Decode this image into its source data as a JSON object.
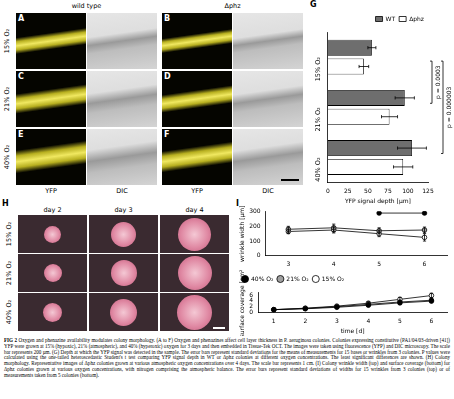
{
  "micrographs": {
    "columns": [
      "wild type",
      "Δphz"
    ],
    "channels": [
      "YFP",
      "DIC"
    ],
    "rows": [
      "15% O₂",
      "21% O₂",
      "40% O₂"
    ],
    "panels": [
      [
        "A",
        "B"
      ],
      [
        "C",
        "D"
      ],
      [
        "E",
        "F"
      ]
    ]
  },
  "colony_photos": {
    "panel": "H",
    "rows": [
      "15% O₂",
      "21% O₂",
      "40% O₂"
    ],
    "columns": [
      "day 2",
      "day 3",
      "day 4"
    ]
  },
  "caption": {
    "title": "FIG 2",
    "text": "Oxygen and phenazine availability modulates colony morphology. (A to F) Oxygen and phenazines affect cell layer thickness in P. aeruginosa colonies. Colonies expressing constitutive (PA1/04/03-driven [41]) YFP were grown at 15% (hypoxic), 21% (atmospheric), and 40% (hyperoxic) oxygen for 3 days and then embedded in Tissue-Tek OCT. The images were taken using fluorescence (YFP) and DIC microscopy. The scale bar represents 200 µm. (G) Depth at which the YFP signal was detected in the sample. The error bars represent standard deviations for the means of measurements for 15 bases or wrinkles from 3 colonies. P values were calculated using the one-tailed heteroscedastic Student's t test comparing YFP signal depth in WT or Δphz colonies at different oxygen concentrations. The least significant differences are shown. (H) Colony morphology. Representative images of Δphz colonies grown at various atmospheric oxygen concentrations over 4 days. The scale bar represents 1 cm. (I) Colony wrinkle width (top) and surface coverage (bottom) for Δphz colonies grown at various oxygen concentrations, with nitrogen comprising the atmospheric balance. The error bars represent standard deviations of widths for 15 wrinkles from 3 colonies (top) or of measurements taken from 5 colonies (bottom)."
  },
  "chart_data": [
    {
      "panel": "G",
      "type": "bar",
      "orientation": "horizontal",
      "categories": [
        "15% O₂",
        "21% O₂",
        "40% O₂"
      ],
      "series": [
        {
          "name": "WT",
          "color": "#6e6e6e",
          "values": [
            55,
            96,
            105
          ],
          "errors": [
            5,
            12,
            18
          ]
        },
        {
          "name": "Δphz",
          "color": "#ffffff",
          "values": [
            45,
            77,
            94
          ],
          "errors": [
            6,
            10,
            12
          ]
        }
      ],
      "x_label": "YFP signal depth [µm]",
      "xlim": [
        0,
        125
      ],
      "xticks": [
        0,
        25,
        50,
        75,
        100,
        125
      ],
      "annotations": [
        {
          "text": "p = 0.0003",
          "between": [
            "15% O₂",
            "21% O₂"
          ]
        },
        {
          "text": "p = 0.000003",
          "between": [
            "15% O₂",
            "40% O₂"
          ]
        }
      ],
      "legend": "top right",
      "grid": false
    },
    {
      "panel": "I",
      "type": "line",
      "x": [
        3,
        4,
        5,
        6
      ],
      "series": [
        {
          "name": "40% O₂",
          "color": "#000000",
          "marker": "circle",
          "line_style": "solid",
          "values": [
            null,
            null,
            290,
            290
          ],
          "errors": [
            null,
            null,
            8,
            10
          ]
        },
        {
          "name": "21% O₂",
          "color": "#a0a0a0",
          "marker": "circle",
          "line_style": "solid",
          "values": [
            180,
            190,
            170,
            175
          ],
          "errors": [
            20,
            25,
            20,
            20
          ]
        },
        {
          "name": "15% O₂",
          "color": "#ffffff",
          "marker": "circle",
          "line_style": "solid",
          "values": [
            165,
            175,
            150,
            125
          ],
          "errors": [
            15,
            20,
            20,
            25
          ]
        }
      ],
      "y_label": "wrinkle width [µm]",
      "xlim": [
        2.5,
        6.5
      ],
      "xticks": [
        3,
        4,
        5,
        6
      ],
      "ylim": [
        0,
        300
      ],
      "yticks": [
        0,
        100,
        200,
        300
      ],
      "grid": false
    },
    {
      "type": "line",
      "x": [
        1,
        2,
        3,
        4,
        5,
        6
      ],
      "series": [
        {
          "name": "40% O₂",
          "color": "#000000",
          "marker": "circle",
          "line_style": "solid",
          "values": [
            1.0,
            1.3,
            1.8,
            2.5,
            3.3,
            3.9
          ],
          "errors": [
            0.1,
            0.2,
            0.2,
            0.3,
            0.4,
            0.5
          ]
        },
        {
          "name": "21% O₂",
          "color": "#a0a0a0",
          "marker": "circle",
          "line_style": "solid",
          "values": [
            1.0,
            1.4,
            2.0,
            2.8,
            3.6,
            4.2
          ],
          "errors": [
            0.1,
            0.2,
            0.3,
            0.4,
            0.5,
            0.6
          ]
        },
        {
          "name": "15% O₂",
          "color": "#ffffff",
          "marker": "circle",
          "line_style": "solid",
          "values": [
            1.0,
            1.5,
            2.2,
            3.2,
            4.5,
            5.8
          ],
          "errors": [
            0.1,
            0.2,
            0.3,
            0.5,
            0.7,
            0.8
          ]
        }
      ],
      "x_label": "time [d]",
      "y_label": "surface coverage [cm²]",
      "xlim": [
        0.5,
        6.5
      ],
      "xticks": [
        1,
        2,
        3,
        4,
        5,
        6
      ],
      "ylim": [
        0,
        7
      ],
      "yticks": [
        0,
        2,
        4,
        6
      ],
      "legend": "top left",
      "grid": false
    }
  ]
}
